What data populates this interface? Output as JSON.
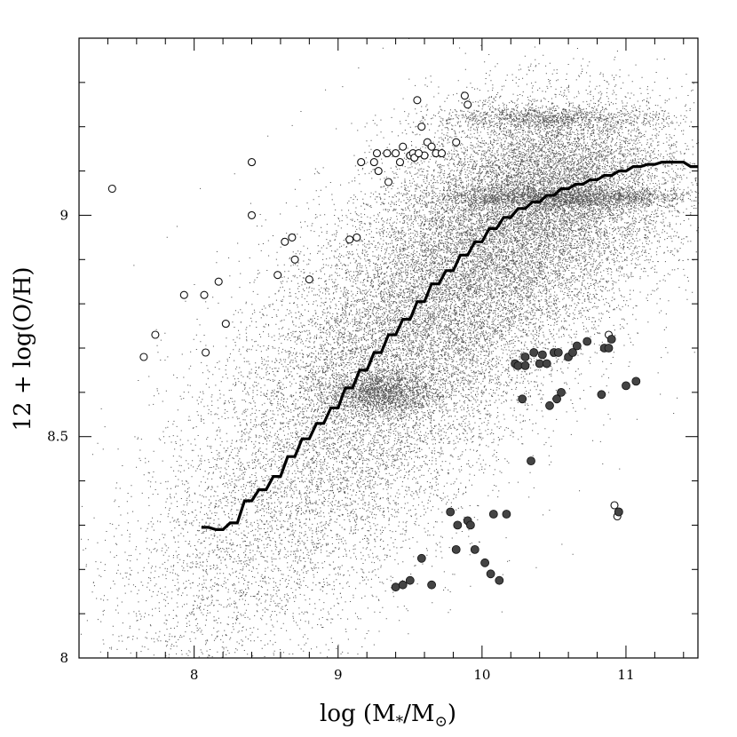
{
  "chart_data": {
    "type": "scatter",
    "xlabel_parts": {
      "pre": "log (M",
      "sub1": "*",
      "mid": "/M",
      "sub2": "⊙",
      "post": ")"
    },
    "ylabel": "12 + log(O/H)",
    "xlim": [
      7.2,
      11.5
    ],
    "ylim": [
      8.0,
      9.4
    ],
    "xticks_major": [
      8,
      9,
      10,
      11
    ],
    "xticks_minor_step": 0.2,
    "yticks_major": [
      8,
      8.5,
      9
    ],
    "yticks_major_labels": [
      "8",
      "8.5",
      "9"
    ],
    "yticks_minor_step": 0.1,
    "grid": false,
    "background_cloud": {
      "description_color": "#555555",
      "clusters": [
        {
          "x": 10.55,
          "y": 9.08,
          "sx": 0.45,
          "sy": 0.1,
          "n": 7000
        },
        {
          "x": 10.2,
          "y": 8.95,
          "sx": 0.45,
          "sy": 0.12,
          "n": 5000
        },
        {
          "x": 9.8,
          "y": 8.82,
          "sx": 0.45,
          "sy": 0.13,
          "n": 4500
        },
        {
          "x": 9.4,
          "y": 8.68,
          "sx": 0.45,
          "sy": 0.14,
          "n": 3500
        },
        {
          "x": 9.1,
          "y": 8.55,
          "sx": 0.45,
          "sy": 0.16,
          "n": 2800
        },
        {
          "x": 8.7,
          "y": 8.38,
          "sx": 0.45,
          "sy": 0.16,
          "n": 2000
        },
        {
          "x": 8.3,
          "y": 8.22,
          "sx": 0.45,
          "sy": 0.16,
          "n": 1200
        },
        {
          "x": 7.9,
          "y": 8.1,
          "sx": 0.4,
          "sy": 0.12,
          "n": 500
        },
        {
          "x": 9.3,
          "y": 8.6,
          "sx": 0.18,
          "sy": 0.025,
          "n": 1500
        },
        {
          "x": 10.55,
          "y": 9.04,
          "sx": 0.45,
          "sy": 0.012,
          "n": 1800
        },
        {
          "x": 10.45,
          "y": 9.22,
          "sx": 0.4,
          "sy": 0.012,
          "n": 900
        }
      ]
    },
    "series": [
      {
        "style": "step-line",
        "x": [
          8.05,
          8.1,
          8.15,
          8.2,
          8.25,
          8.3,
          8.35,
          8.4,
          8.45,
          8.5,
          8.55,
          8.6,
          8.65,
          8.7,
          8.75,
          8.8,
          8.85,
          8.9,
          8.95,
          9.0,
          9.05,
          9.1,
          9.15,
          9.2,
          9.25,
          9.3,
          9.35,
          9.4,
          9.45,
          9.5,
          9.55,
          9.6,
          9.65,
          9.7,
          9.75,
          9.8,
          9.85,
          9.9,
          9.95,
          10.0,
          10.05,
          10.1,
          10.15,
          10.2,
          10.25,
          10.3,
          10.35,
          10.4,
          10.45,
          10.5,
          10.55,
          10.6,
          10.65,
          10.7,
          10.75,
          10.8,
          10.85,
          10.9,
          10.95,
          11.0,
          11.05,
          11.1,
          11.15,
          11.2,
          11.25,
          11.3,
          11.35,
          11.4,
          11.45,
          11.5
        ],
        "y": [
          8.295,
          8.295,
          8.29,
          8.29,
          8.305,
          8.305,
          8.355,
          8.355,
          8.38,
          8.38,
          8.41,
          8.41,
          8.455,
          8.455,
          8.495,
          8.495,
          8.53,
          8.53,
          8.565,
          8.565,
          8.61,
          8.61,
          8.65,
          8.65,
          8.69,
          8.69,
          8.73,
          8.73,
          8.765,
          8.765,
          8.805,
          8.805,
          8.845,
          8.845,
          8.875,
          8.875,
          8.91,
          8.91,
          8.94,
          8.94,
          8.97,
          8.97,
          8.995,
          8.995,
          9.015,
          9.015,
          9.03,
          9.03,
          9.045,
          9.045,
          9.06,
          9.06,
          9.07,
          9.07,
          9.08,
          9.08,
          9.09,
          9.09,
          9.1,
          9.1,
          9.11,
          9.11,
          9.115,
          9.115,
          9.12,
          9.12,
          9.12,
          9.12,
          9.11,
          9.11
        ]
      },
      {
        "style": "open-circle",
        "x": [
          7.43,
          7.65,
          7.73,
          7.93,
          8.07,
          8.08,
          8.17,
          8.22,
          8.4,
          8.4,
          8.58,
          8.63,
          8.68,
          8.7,
          8.8,
          9.08,
          9.13,
          9.16,
          9.25,
          9.27,
          9.28,
          9.34,
          9.35,
          9.4,
          9.43,
          9.45,
          9.5,
          9.52,
          9.53,
          9.55,
          9.58,
          9.6,
          9.62,
          9.65,
          9.68,
          9.72,
          9.82,
          9.88,
          9.9,
          9.56,
          10.92,
          10.94,
          10.88
        ],
        "y": [
          9.06,
          8.68,
          8.73,
          8.82,
          8.82,
          8.69,
          8.85,
          8.755,
          9.12,
          9.0,
          8.865,
          8.94,
          8.95,
          8.9,
          8.855,
          8.945,
          8.95,
          9.12,
          9.12,
          9.14,
          9.1,
          9.14,
          9.075,
          9.14,
          9.12,
          9.155,
          9.135,
          9.14,
          9.13,
          9.26,
          9.2,
          9.135,
          9.165,
          9.155,
          9.14,
          9.14,
          9.165,
          9.27,
          9.25,
          9.14,
          8.345,
          8.32,
          8.73
        ],
        "r": 4
      },
      {
        "style": "filled-circle",
        "x": [
          9.4,
          9.45,
          9.5,
          9.58,
          9.65,
          9.78,
          9.82,
          9.83,
          9.9,
          9.92,
          9.95,
          10.02,
          10.06,
          10.08,
          10.12,
          10.17,
          10.23,
          10.25,
          10.28,
          10.3,
          10.3,
          10.34,
          10.36,
          10.4,
          10.42,
          10.45,
          10.47,
          10.5,
          10.52,
          10.53,
          10.55,
          10.6,
          10.63,
          10.66,
          10.73,
          10.83,
          10.85,
          10.88,
          10.9,
          10.95,
          10.95,
          11.0,
          11.07
        ],
        "y": [
          8.16,
          8.165,
          8.175,
          8.225,
          8.165,
          8.33,
          8.245,
          8.3,
          8.31,
          8.3,
          8.245,
          8.215,
          8.19,
          8.325,
          8.175,
          8.325,
          8.665,
          8.66,
          8.585,
          8.68,
          8.66,
          8.445,
          8.69,
          8.665,
          8.685,
          8.665,
          8.57,
          8.69,
          8.585,
          8.69,
          8.6,
          8.68,
          8.69,
          8.705,
          8.715,
          8.595,
          8.7,
          8.7,
          8.72,
          8.33,
          8.33,
          8.615,
          8.625
        ],
        "r": 4.5
      }
    ]
  }
}
